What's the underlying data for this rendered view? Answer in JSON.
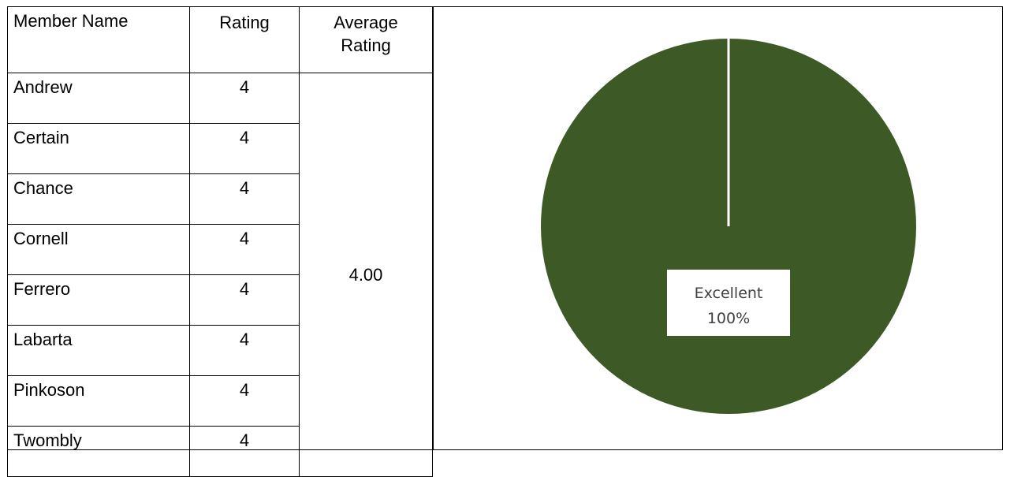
{
  "table": {
    "headers": {
      "member_name": "Member Name",
      "rating": "Rating",
      "average_rating_line1": "Average",
      "average_rating_line2": "Rating"
    },
    "rows": [
      {
        "name": "Andrew",
        "rating": "4"
      },
      {
        "name": "Certain",
        "rating": "4"
      },
      {
        "name": "Chance",
        "rating": "4"
      },
      {
        "name": "Cornell",
        "rating": "4"
      },
      {
        "name": "Ferrero",
        "rating": "4"
      },
      {
        "name": "Labarta",
        "rating": "4"
      },
      {
        "name": "Pinkoson",
        "rating": "4"
      },
      {
        "name": "Twombly",
        "rating": "4"
      }
    ],
    "average_rating": "4.00"
  },
  "chart_data": {
    "type": "pie",
    "categories": [
      "Excellent"
    ],
    "values": [
      100
    ],
    "data_labels": [
      {
        "category": "Excellent",
        "percent": "100%"
      }
    ],
    "colors": [
      "#3d5a26"
    ],
    "slice_separator_color": "#ffffff",
    "label_text_color": "#404040",
    "label_background_color": "#ffffff",
    "title": "",
    "legend": "none"
  }
}
